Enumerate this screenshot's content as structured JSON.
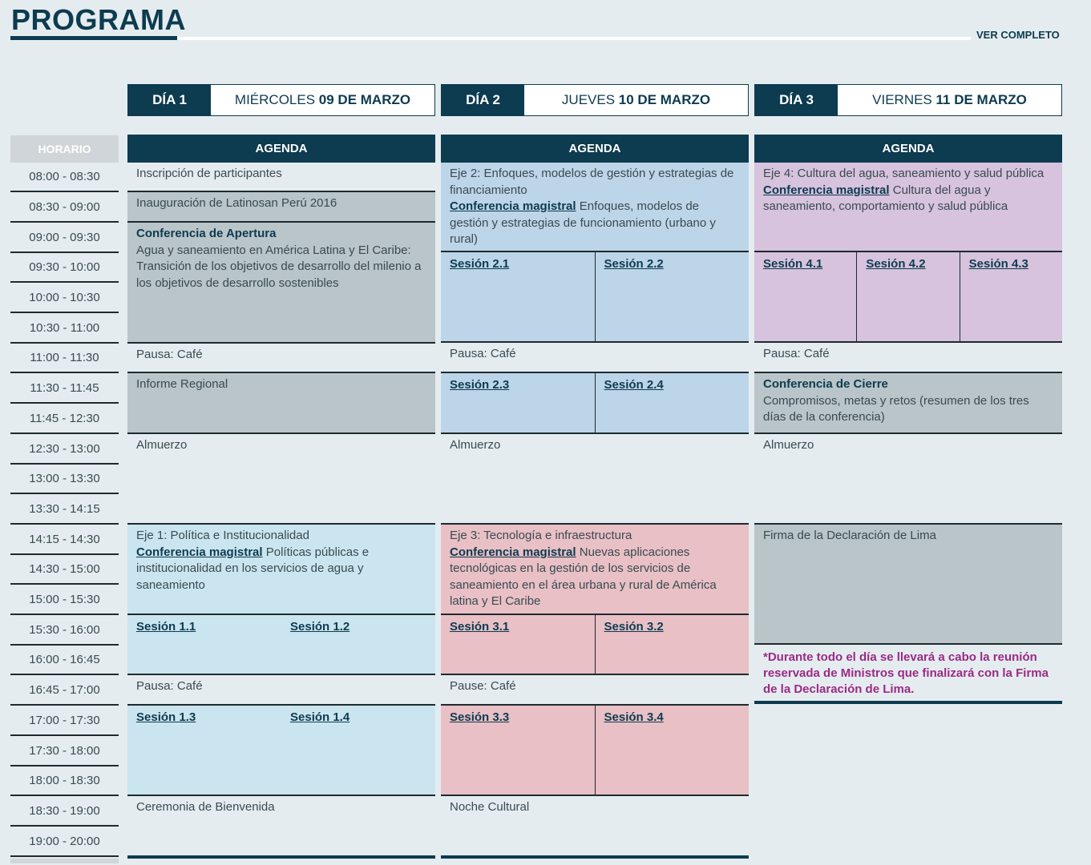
{
  "header": {
    "title": "PROGRAMA",
    "ver_completo": "VER COMPLETO"
  },
  "days": [
    {
      "label": "DÍA 1",
      "date_pre": "MIÉRCOLES ",
      "date_bold": "09 DE MARZO",
      "agenda": "AGENDA"
    },
    {
      "label": "DÍA 2",
      "date_pre": "JUEVES ",
      "date_bold": "10 DE MARZO",
      "agenda": "AGENDA"
    },
    {
      "label": "DÍA 3",
      "date_pre": "VIERNES ",
      "date_bold": "11 DE MARZO",
      "agenda": "AGENDA"
    }
  ],
  "horario_label": "HORARIO",
  "times": [
    "08:00 - 08:30",
    "08:30 - 09:00",
    "09:00 - 09:30",
    "09:30 - 10:00",
    "10:00 - 10:30",
    "10:30 - 11:00",
    "11:00 - 11:30",
    "11:30 - 11:45",
    "11:45 - 12:30",
    "12:30 - 13:00",
    "13:00 - 13:30",
    "13:30 - 14:15",
    "14:15 - 14:30",
    "14:30 - 15:00",
    "15:00 - 15:30",
    "15:30 - 16:00",
    "16:00 - 16:45",
    "16:45 - 17:00",
    "17:00 - 17:30",
    "17:30 - 18:00",
    "18:00 - 18:30",
    "18:30 - 19:00",
    "19:00 - 20:00"
  ],
  "colors": {
    "dark": "#0d3b50",
    "gray": "#b9c5c8",
    "day1_blue": "#cae5ef",
    "day2_blue": "#bdd5e8",
    "day2_pink": "#e8c0c5",
    "day3_purple": "#d7c3dd",
    "note": "#9b2a86"
  },
  "columns": [
    {
      "blocks": [
        {
          "text": "Inscripción de participantes"
        },
        {
          "text": "Inauguración de Latinosan Perú 2016"
        },
        {
          "title": "Conferencia de Apertura",
          "text": "Agua y saneamiento en América Latina y El Caribe: Transición de los objetivos de desarrollo del milenio a los objetivos de desarrollo sostenibles"
        },
        {
          "text": "Pausa: Café"
        },
        {
          "text": "Informe Regional"
        },
        {
          "text": "Almuerzo"
        },
        {
          "text": "Eje 1: Política e Institucionalidad",
          "magistral": "Conferencia magistral",
          "magistral_text": " Políticas públicas e institucionalidad en los servicios de agua y saneamiento"
        },
        {
          "sessions": [
            "Sesión 1.1",
            "Sesión 1.2"
          ]
        },
        {
          "text": "Pausa: Café"
        },
        {
          "sessions": [
            "Sesión 1.3",
            "Sesión 1.4"
          ]
        },
        {
          "text": "Ceremonia de Bienvenida"
        }
      ]
    },
    {
      "blocks": [
        {
          "text": "Eje 2: Enfoques, modelos de gestión y estrategias de financiamiento",
          "magistral": "Conferencia magistral",
          "magistral_text": " Enfoques, modelos de gestión y estrategias de funcionamiento (urbano y rural)"
        },
        {
          "sessions": [
            "Sesión 2.1",
            "Sesión 2.2"
          ]
        },
        {
          "text": "Pausa: Café"
        },
        {
          "sessions": [
            "Sesión 2.3",
            "Sesión 2.4"
          ]
        },
        {
          "text": "Almuerzo"
        },
        {
          "text": "Eje 3: Tecnología e infraestructura",
          "magistral": "Conferencia magistral",
          "magistral_text": " Nuevas aplicaciones tecnológicas en la gestión de los servicios de saneamiento en el área urbana y rural de América latina y El Caribe"
        },
        {
          "sessions": [
            "Sesión 3.1",
            "Sesión 3.2"
          ]
        },
        {
          "text": "Pause: Café"
        },
        {
          "sessions": [
            "Sesión 3.3",
            "Sesión 3.4"
          ]
        },
        {
          "text": "Noche Cultural"
        }
      ]
    },
    {
      "blocks": [
        {
          "text": "Eje 4: Cultura del agua, saneamiento y salud pública",
          "magistral": "Conferencia magistral",
          "magistral_text": " Cultura del agua y saneamiento, comportamiento y salud pública"
        },
        {
          "sessions": [
            "Sesión 4.1",
            "Sesión 4.2",
            "Sesión 4.3"
          ]
        },
        {
          "text": "Pausa: Café"
        },
        {
          "title": "Conferencia de Cierre",
          "text": "Compromisos, metas y retos (resumen de los tres días de la conferencia)"
        },
        {
          "text": "Almuerzo"
        },
        {
          "text": "Firma de la Declaración de Lima"
        }
      ]
    }
  ],
  "note": "*Durante todo el día se llevará a cabo la reunión reservada de Ministros que finalizará con la Firma de la Declaración de Lima."
}
